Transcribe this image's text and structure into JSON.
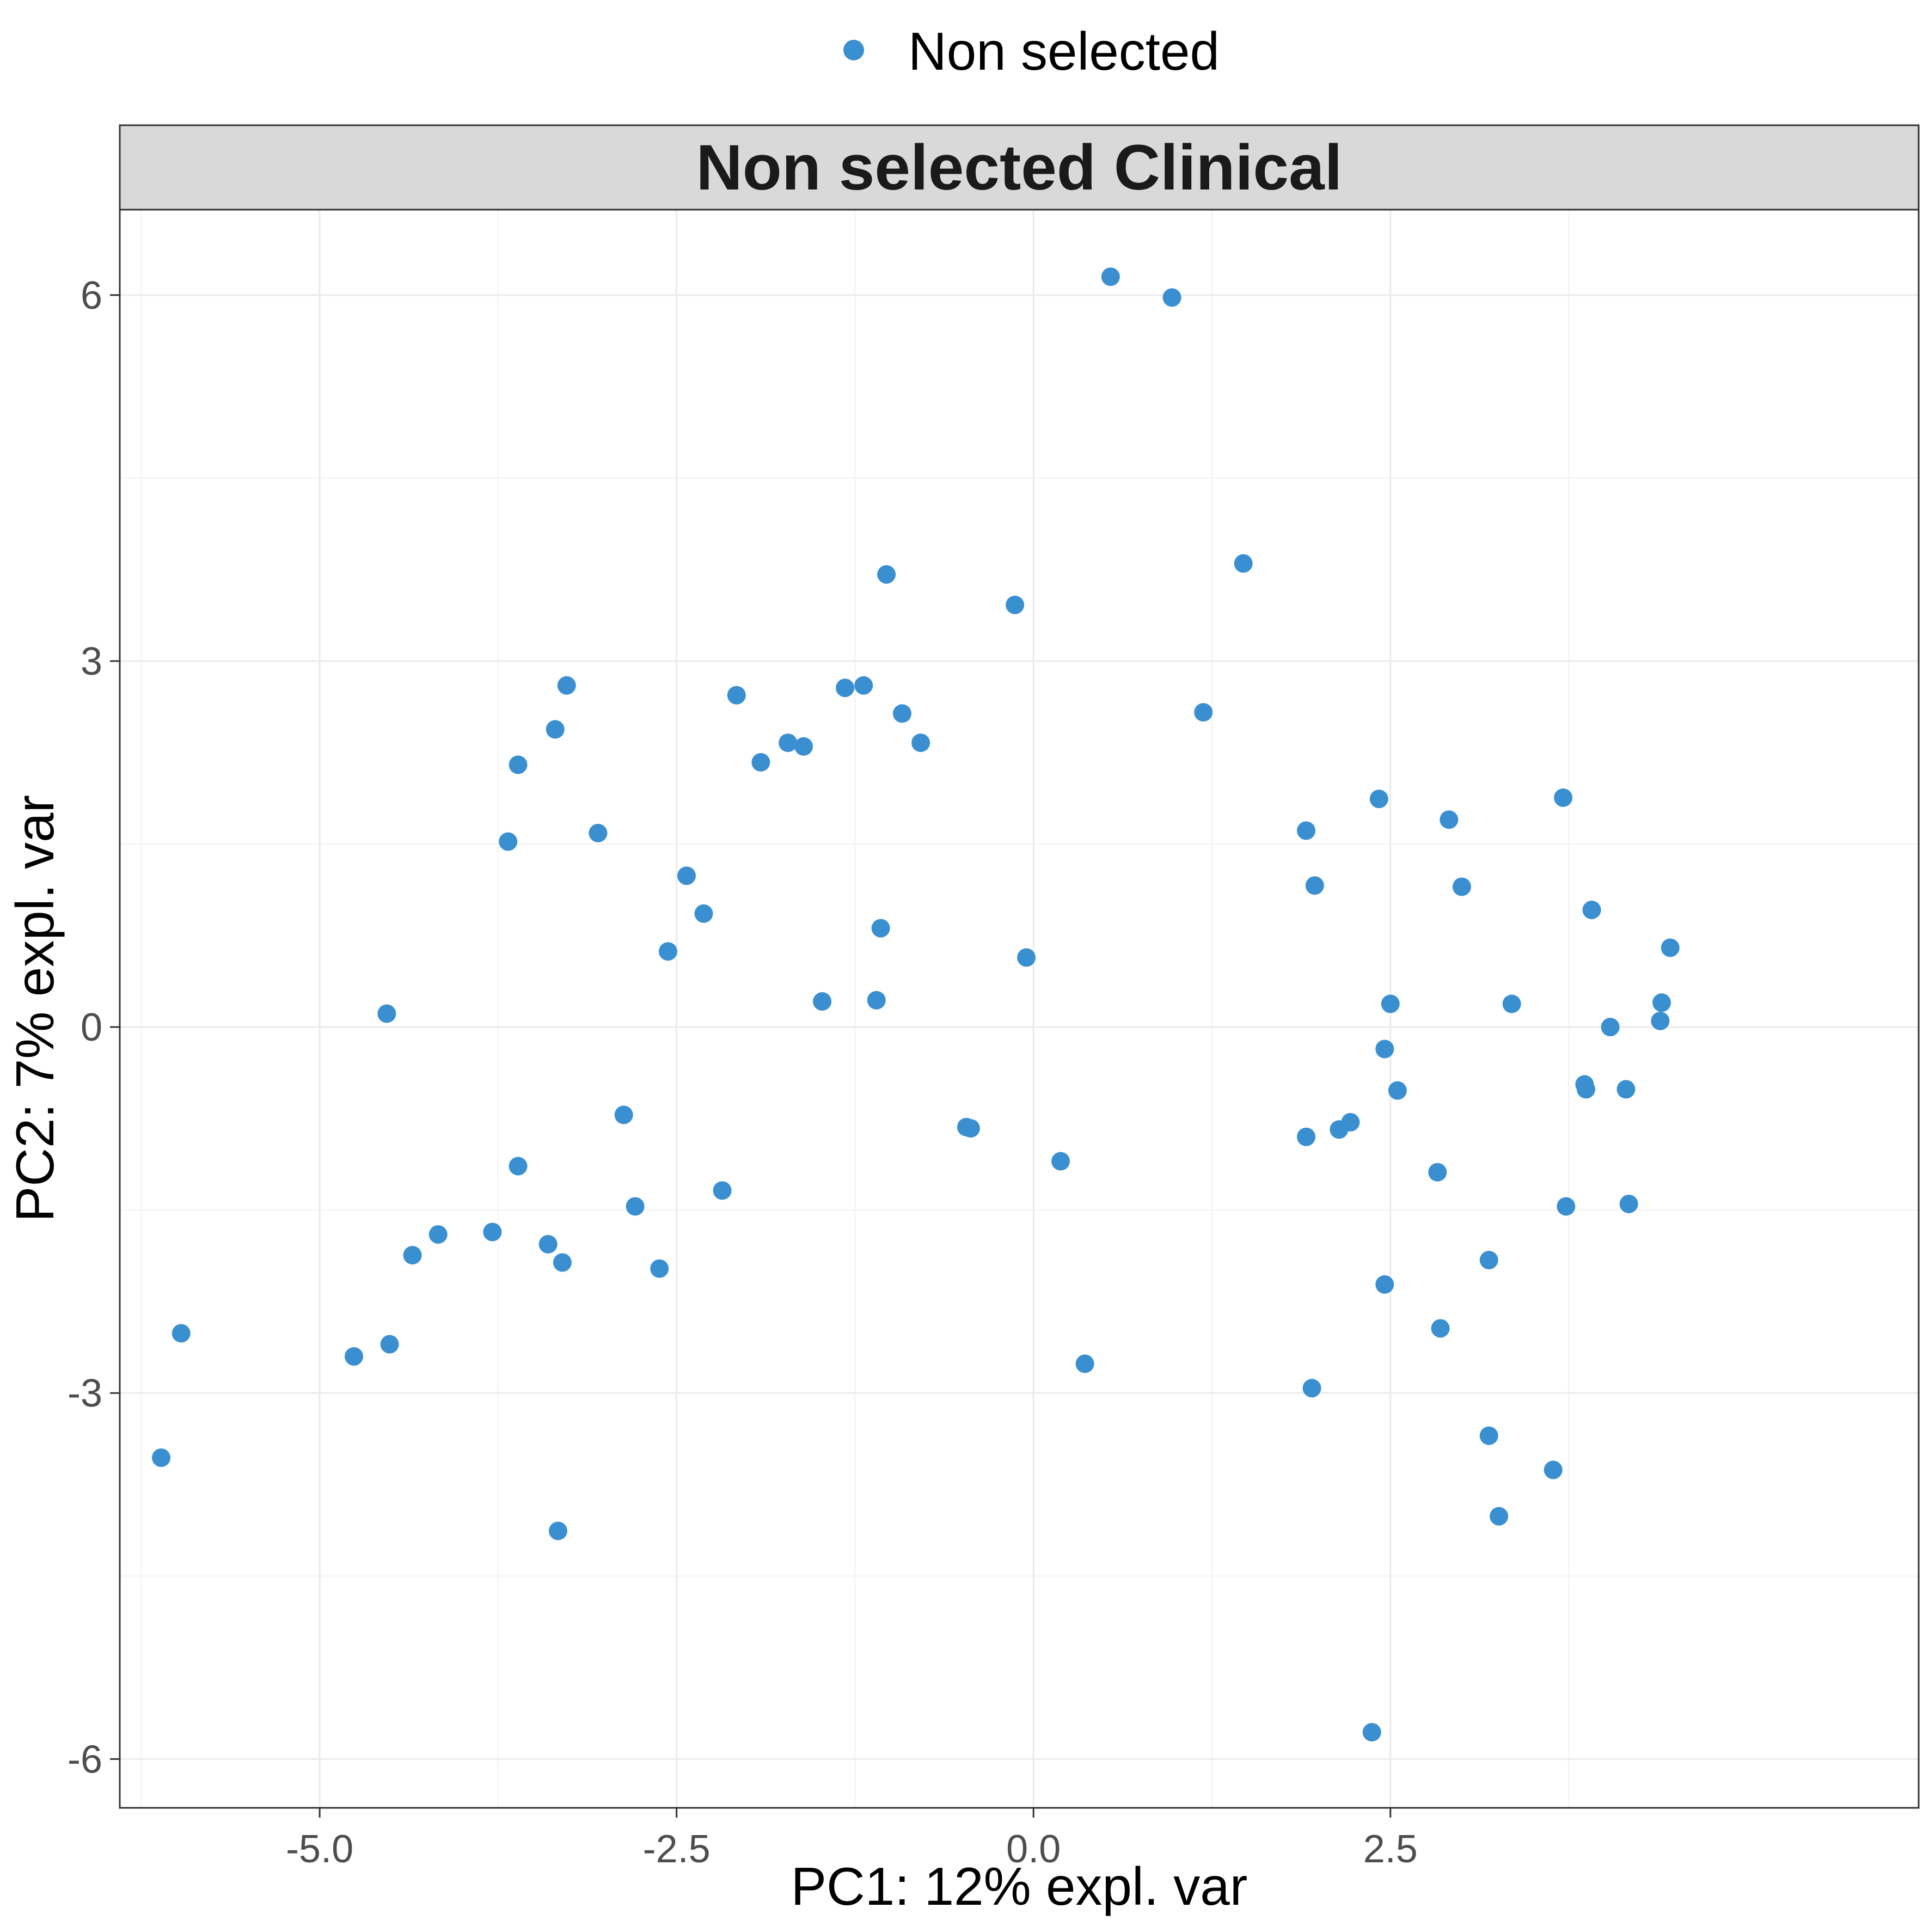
{
  "chart_data": {
    "type": "scatter",
    "title": "Non selected Clinical",
    "xlabel": "PC1: 12% expl. var",
    "ylabel": "PC2: 7% expl. var",
    "xlim": [
      -6.4,
      6.2
    ],
    "ylim": [
      -6.4,
      6.7
    ],
    "x_ticks": [
      {
        "value": -5.0,
        "label": "-5.0"
      },
      {
        "value": -2.5,
        "label": "-2.5"
      },
      {
        "value": 0.0,
        "label": "0.0"
      },
      {
        "value": 2.5,
        "label": "2.5"
      }
    ],
    "y_ticks": [
      {
        "value": -6,
        "label": "-6"
      },
      {
        "value": -3,
        "label": "-3"
      },
      {
        "value": 0,
        "label": "0"
      },
      {
        "value": 3,
        "label": "3"
      },
      {
        "value": 6,
        "label": "6"
      }
    ],
    "grid": true,
    "legend": {
      "placement": "top",
      "entries": [
        {
          "label": "Non selected",
          "color": "#3a8fd1"
        }
      ]
    },
    "series": [
      {
        "name": "Non selected",
        "color": "#3a8fd1",
        "points": [
          [
            0.54,
            6.15
          ],
          [
            0.97,
            5.98
          ],
          [
            1.47,
            3.8
          ],
          [
            -1.03,
            3.71
          ],
          [
            -0.13,
            3.46
          ],
          [
            -3.27,
            2.8
          ],
          [
            -1.19,
            2.8
          ],
          [
            -1.32,
            2.78
          ],
          [
            -2.08,
            2.72
          ],
          [
            -0.92,
            2.57
          ],
          [
            1.19,
            2.58
          ],
          [
            -3.35,
            2.44
          ],
          [
            -1.72,
            2.33
          ],
          [
            -1.61,
            2.3
          ],
          [
            -0.79,
            2.33
          ],
          [
            -1.91,
            2.17
          ],
          [
            -3.61,
            2.15
          ],
          [
            -3.05,
            1.59
          ],
          [
            -3.68,
            1.52
          ],
          [
            -2.43,
            1.24
          ],
          [
            -2.31,
            0.93
          ],
          [
            -1.07,
            0.81
          ],
          [
            -2.56,
            0.62
          ],
          [
            -0.05,
            0.57
          ],
          [
            -1.48,
            0.21
          ],
          [
            -1.1,
            0.22
          ],
          [
            -4.53,
            0.11
          ],
          [
            -2.87,
            -0.72
          ],
          [
            -0.47,
            -0.82
          ],
          [
            -0.44,
            -0.83
          ],
          [
            -3.61,
            -1.14
          ],
          [
            0.19,
            -1.1
          ],
          [
            -2.18,
            -1.34
          ],
          [
            -2.79,
            -1.47
          ],
          [
            -3.79,
            -1.68
          ],
          [
            -4.17,
            -1.7
          ],
          [
            -4.35,
            -1.87
          ],
          [
            -3.4,
            -1.78
          ],
          [
            -3.3,
            -1.93
          ],
          [
            -2.62,
            -1.98
          ],
          [
            -5.97,
            -2.51
          ],
          [
            -4.76,
            -2.7
          ],
          [
            -4.51,
            -2.6
          ],
          [
            0.36,
            -2.76
          ],
          [
            -6.11,
            -3.53
          ],
          [
            -3.33,
            -4.13
          ],
          [
            1.91,
            1.61
          ],
          [
            1.97,
            1.16
          ],
          [
            2.42,
            1.87
          ],
          [
            2.91,
            1.7
          ],
          [
            3.0,
            1.15
          ],
          [
            3.71,
            1.88
          ],
          [
            3.91,
            0.96
          ],
          [
            4.46,
            0.65
          ],
          [
            2.5,
            0.19
          ],
          [
            3.35,
            0.19
          ],
          [
            4.4,
            0.2
          ],
          [
            4.39,
            0.05
          ],
          [
            4.04,
            0.0
          ],
          [
            2.46,
            -0.18
          ],
          [
            2.55,
            -0.52
          ],
          [
            3.86,
            -0.47
          ],
          [
            3.87,
            -0.51
          ],
          [
            4.15,
            -0.51
          ],
          [
            2.22,
            -0.78
          ],
          [
            2.14,
            -0.84
          ],
          [
            1.91,
            -0.9
          ],
          [
            2.83,
            -1.19
          ],
          [
            3.73,
            -1.47
          ],
          [
            4.17,
            -1.45
          ],
          [
            3.19,
            -1.91
          ],
          [
            2.46,
            -2.11
          ],
          [
            2.85,
            -2.47
          ],
          [
            1.95,
            -2.96
          ],
          [
            3.19,
            -3.35
          ],
          [
            3.64,
            -3.63
          ],
          [
            3.26,
            -4.01
          ],
          [
            2.37,
            -5.78
          ]
        ]
      }
    ]
  }
}
